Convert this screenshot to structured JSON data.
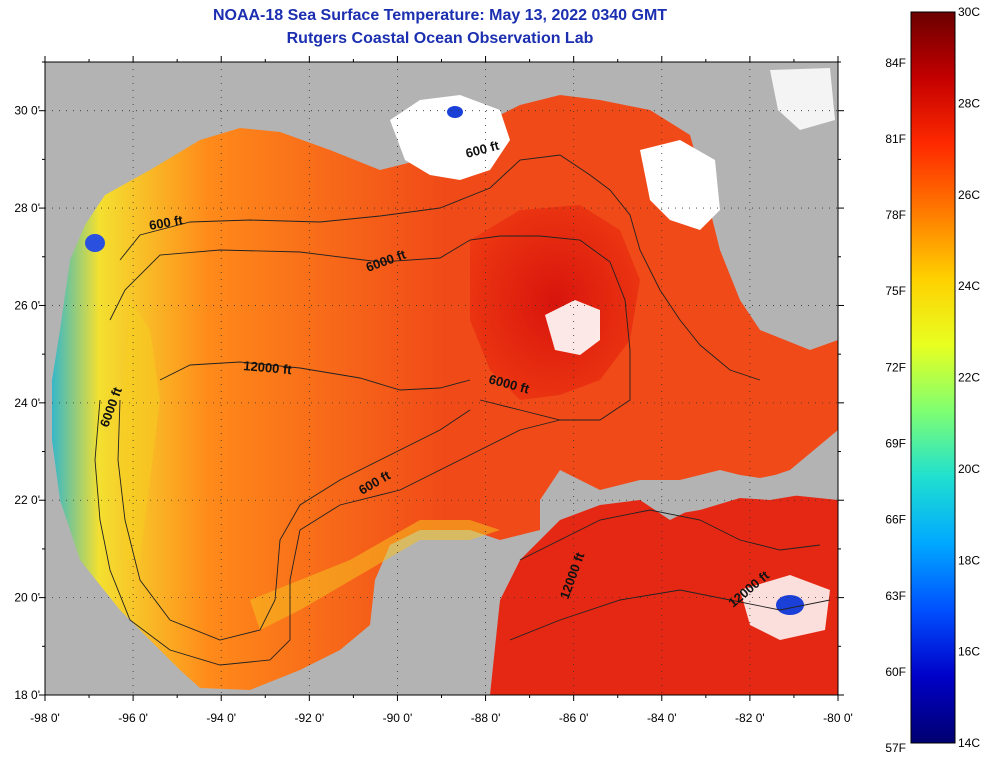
{
  "header": {
    "title": "NOAA-18 Sea Surface Temperature:  May 13, 2022 0340 GMT",
    "subtitle": "Rutgers Coastal Ocean Observation Lab"
  },
  "axes": {
    "lat_labels": [
      "30 0'",
      "28 0'",
      "26 0'",
      "24 0'",
      "22 0'",
      "20 0'",
      "18 0'"
    ],
    "lon_labels": [
      "-98 0'",
      "-96 0'",
      "-94 0'",
      "-92 0'",
      "-90 0'",
      "-88 0'",
      "-86 0'",
      "-84 0'",
      "-82 0'",
      "-80 0'"
    ],
    "lat_range": [
      18,
      31
    ],
    "lon_range": [
      -98,
      -80
    ]
  },
  "contours": [
    {
      "label": "600 ft"
    },
    {
      "label": "6000 ft"
    },
    {
      "label": "12000 ft"
    },
    {
      "label": "6000 ft"
    },
    {
      "label": "600 ft"
    },
    {
      "label": "6000 ft"
    },
    {
      "label": "600 ft"
    },
    {
      "label": "12000 ft"
    },
    {
      "label": "12000 ft"
    }
  ],
  "colorbar": {
    "celsius_labels": [
      "30C",
      "28C",
      "26C",
      "24C",
      "22C",
      "20C",
      "18C",
      "16C",
      "14C"
    ],
    "fahrenheit_labels": [
      "84F",
      "81F",
      "78F",
      "75F",
      "72F",
      "69F",
      "66F",
      "63F",
      "60F",
      "57F"
    ],
    "colors": [
      "#6b0000",
      "#c40000",
      "#ff2a00",
      "#ff7a00",
      "#ffd000",
      "#e8ff20",
      "#80ff70",
      "#20e0d0",
      "#00a8ff",
      "#0050ff",
      "#0000c8",
      "#000070"
    ]
  },
  "colors": {
    "land": "#b3b3b3",
    "sst_warm": "#f23a16",
    "sst_hot": "#e0190f",
    "sst_mid": "#ff8a1a",
    "sst_cool": "#f5d020",
    "cloud": "#ffffff"
  }
}
